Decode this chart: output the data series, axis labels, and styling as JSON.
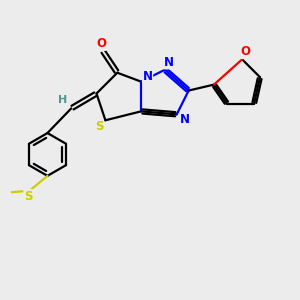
{
  "background_color": "#ececec",
  "atom_colors": {
    "C": "#000000",
    "H": "#4a9a8a",
    "N": "#0000ff",
    "O": "#ff0000",
    "S": "#cccc00"
  },
  "figsize": [
    3.0,
    3.0
  ],
  "dpi": 100,
  "lw": 1.6,
  "fs": 8.5,
  "xlim": [
    0,
    10
  ],
  "ylim": [
    0,
    10
  ]
}
